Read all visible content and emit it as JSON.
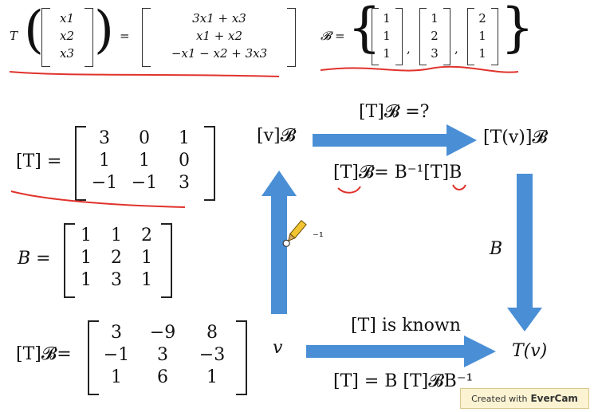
{
  "top": {
    "T_label": "T",
    "vec_x": [
      "x1",
      "x2",
      "x3"
    ],
    "eq": "=",
    "image": [
      "3x1 + x3",
      "x1 + x2",
      "−x1 − x2 + 3x3"
    ],
    "basis_label": "𝓑 =",
    "basis": [
      [
        "1",
        "1",
        "1"
      ],
      [
        "1",
        "2",
        "3"
      ],
      [
        "2",
        "1",
        "1"
      ]
    ],
    "comma": ","
  },
  "left": {
    "T_label": "[T] =",
    "T_matrix": [
      [
        "3",
        "0",
        "1"
      ],
      [
        "1",
        "1",
        "0"
      ],
      [
        "−1",
        "−1",
        "3"
      ]
    ],
    "B_label": "B =",
    "B_matrix": [
      [
        "1",
        "1",
        "2"
      ],
      [
        "1",
        "2",
        "1"
      ],
      [
        "1",
        "3",
        "1"
      ]
    ],
    "TB_label": "[T]𝓑=",
    "TB_matrix": [
      [
        "3",
        "−9",
        "8"
      ],
      [
        "−1",
        "3",
        "−3"
      ],
      [
        "1",
        "6",
        "1"
      ]
    ]
  },
  "diagram": {
    "v_B": "[v]𝓑",
    "Tv_B": "[T(v)]𝓑",
    "top_label": "[T]𝓑 =?",
    "top_formula": "[T]𝓑= B⁻¹[T]B",
    "right_label": "B",
    "left_label": "⁻¹",
    "v": "v",
    "Tv": "T(v)",
    "bottom_label": "[T] is known",
    "bottom_formula": "[T] = B [T]𝓑B⁻¹",
    "arrow_color": "#4a8fd6"
  },
  "watermark": {
    "prefix": "Created with",
    "brand": "EverCam"
  },
  "colors": {
    "ink": "#111111",
    "annotation": "#e0332c"
  }
}
